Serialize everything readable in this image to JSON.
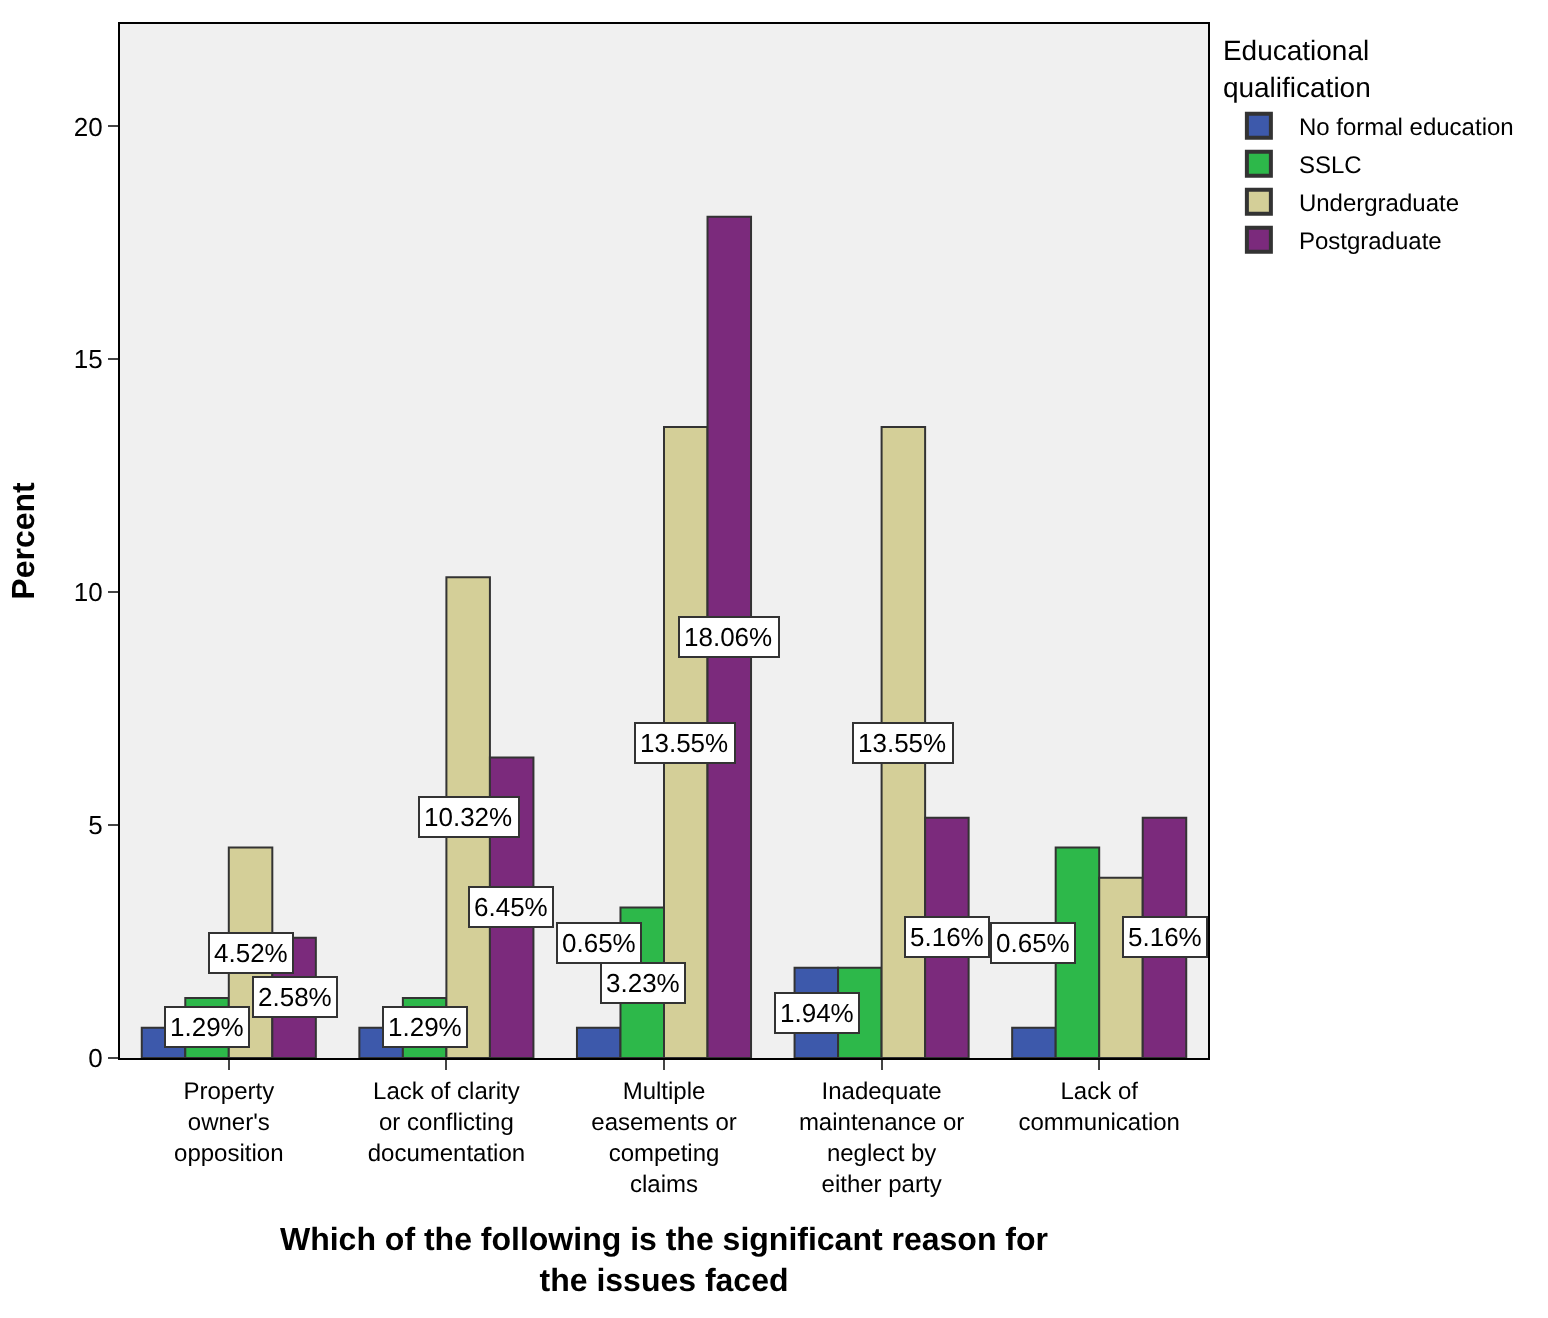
{
  "chart_data": {
    "type": "bar",
    "xlabel": "Which of the following is the significant reason for\nthe issues faced",
    "ylabel": "Percent",
    "legend_title": "Educational\nqualification",
    "legend": "top right",
    "categories": [
      "Property\nowner's\nopposition",
      "Lack of clarity\nor conflicting\ndocumentation",
      "Multiple\neasements or\ncompeting\nclaims",
      "Inadequate\nmaintenance or\nneglect by\neither party",
      "Lack of\ncommunication"
    ],
    "series": [
      {
        "name": "No formal education",
        "color": "#3d59ab",
        "values": [
          0.65,
          0.65,
          0.65,
          1.94,
          0.65
        ],
        "value_labels": [
          null,
          null,
          "0.65%",
          "1.94%",
          "0.65%"
        ]
      },
      {
        "name": "SSLC",
        "color": "#2db84a",
        "values": [
          1.29,
          1.29,
          3.23,
          1.94,
          4.52
        ],
        "value_labels": [
          "1.29%",
          "1.29%",
          "3.23%",
          null,
          null
        ]
      },
      {
        "name": "Undergraduate",
        "color": "#d4cf98",
        "values": [
          4.52,
          10.32,
          13.55,
          13.55,
          3.87
        ],
        "value_labels": [
          "4.52%",
          "10.32%",
          "13.55%",
          "13.55%",
          null
        ]
      },
      {
        "name": "Postgraduate",
        "color": "#7b2a7c",
        "values": [
          2.58,
          6.45,
          18.06,
          5.16,
          5.16
        ],
        "value_labels": [
          "2.58%",
          "6.45%",
          "18.06%",
          "5.16%",
          "5.16%"
        ]
      }
    ],
    "ylim": [
      0,
      22.2
    ],
    "yticks": [
      0,
      5,
      10,
      15,
      20
    ],
    "grid": false
  }
}
